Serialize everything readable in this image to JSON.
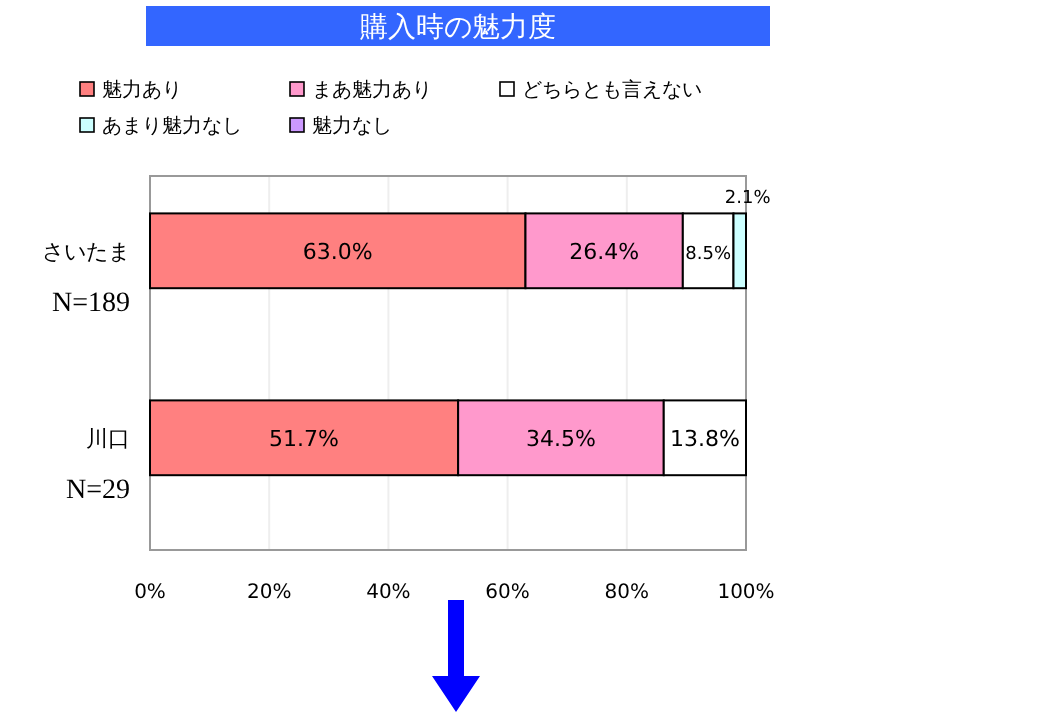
{
  "chart_data": {
    "type": "bar",
    "orientation": "horizontal",
    "stacked": true,
    "title": "購入時の魅力度",
    "categories": [
      "さいたま",
      "川口"
    ],
    "annotations": [
      "N=189",
      "N=29"
    ],
    "series": [
      {
        "name": "魅力あり",
        "color": "#ff8080",
        "values": [
          63.0,
          51.7
        ],
        "value_labels": [
          "63.0%",
          "51.7%"
        ]
      },
      {
        "name": "まあ魅力あり",
        "color": "#ff99cc",
        "values": [
          26.4,
          34.5
        ],
        "value_labels": [
          "26.4%",
          "34.5%"
        ]
      },
      {
        "name": "どちらとも言えない",
        "color": "#ffffff",
        "values": [
          8.5,
          13.8
        ],
        "value_labels": [
          "8.5%",
          "13.8%"
        ]
      },
      {
        "name": "あまり魅力なし",
        "color": "#ccffff",
        "values": [
          2.1,
          null
        ],
        "value_labels": [
          "2.1%",
          null
        ]
      },
      {
        "name": "魅力なし",
        "color": "#cc99ff",
        "values": [
          null,
          null
        ]
      }
    ],
    "xlim": [
      0,
      100
    ],
    "xticks": [
      {
        "value": 0,
        "label": "0%"
      },
      {
        "value": 20,
        "label": "20%"
      },
      {
        "value": 40,
        "label": "40%"
      },
      {
        "value": 60,
        "label": "60%"
      },
      {
        "value": 80,
        "label": "80%"
      },
      {
        "value": 100,
        "label": "100%"
      }
    ],
    "grid": "x",
    "legend": "top"
  }
}
